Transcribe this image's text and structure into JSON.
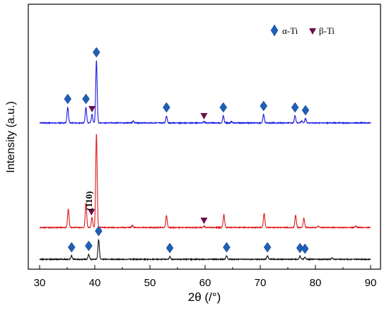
{
  "chart_data": {
    "type": "line",
    "xlabel": "2θ (/°)",
    "ylabel": "Intensity (a.u.)",
    "xlim": [
      30,
      90
    ],
    "xticks": [
      30,
      40,
      50,
      60,
      70,
      80,
      90
    ],
    "grid": false,
    "y_tick_labels": false,
    "legend": {
      "position": "top-right",
      "entries": [
        {
          "label": "α-Ti",
          "marker": "diamond",
          "color": "#1f5fb8"
        },
        {
          "label": "β-Ti",
          "marker": "triangle-down",
          "color": "#6b0f4e"
        }
      ]
    },
    "annotation": {
      "text": "(110)",
      "x": 39.5,
      "series": "middle"
    },
    "series": [
      {
        "key": "top",
        "color": "#1a1ae0",
        "baseline": 174,
        "peaks": [
          [
            35.1,
            22
          ],
          [
            38.4,
            22
          ],
          [
            39.5,
            12
          ],
          [
            40.3,
            88
          ],
          [
            47.0,
            3
          ],
          [
            53.0,
            10
          ],
          [
            59.8,
            2
          ],
          [
            63.3,
            10
          ],
          [
            64.8,
            2
          ],
          [
            70.6,
            12
          ],
          [
            76.3,
            10
          ],
          [
            77.5,
            3
          ],
          [
            78.2,
            6
          ]
        ],
        "alpha_markers": [
          35.1,
          38.4,
          40.3,
          53.0,
          63.3,
          70.6,
          76.3,
          78.2
        ],
        "beta_markers": [
          39.5,
          59.8
        ]
      },
      {
        "key": "middle",
        "color": "#e01818",
        "baseline": 322,
        "peaks": [
          [
            35.2,
            26
          ],
          [
            38.4,
            35
          ],
          [
            39.5,
            14
          ],
          [
            40.3,
            133
          ],
          [
            46.8,
            3
          ],
          [
            53.0,
            17
          ],
          [
            59.8,
            2
          ],
          [
            63.4,
            18
          ],
          [
            70.7,
            20
          ],
          [
            76.4,
            17
          ],
          [
            77.9,
            13
          ],
          [
            80.5,
            2
          ],
          [
            87.3,
            2
          ]
        ],
        "alpha_markers": [],
        "beta_markers": [
          39.4,
          59.8
        ]
      },
      {
        "key": "bottom",
        "color": "#111111",
        "baseline": 367,
        "peaks": [
          [
            35.8,
            5
          ],
          [
            38.9,
            7
          ],
          [
            40.7,
            28
          ],
          [
            53.6,
            4
          ],
          [
            63.9,
            5
          ],
          [
            71.3,
            5
          ],
          [
            77.2,
            4
          ],
          [
            78.1,
            3
          ],
          [
            83.0,
            2
          ]
        ],
        "alpha_markers": [
          35.8,
          38.9,
          40.7,
          53.6,
          63.9,
          71.3,
          77.2,
          78.1
        ],
        "beta_markers": []
      }
    ]
  }
}
